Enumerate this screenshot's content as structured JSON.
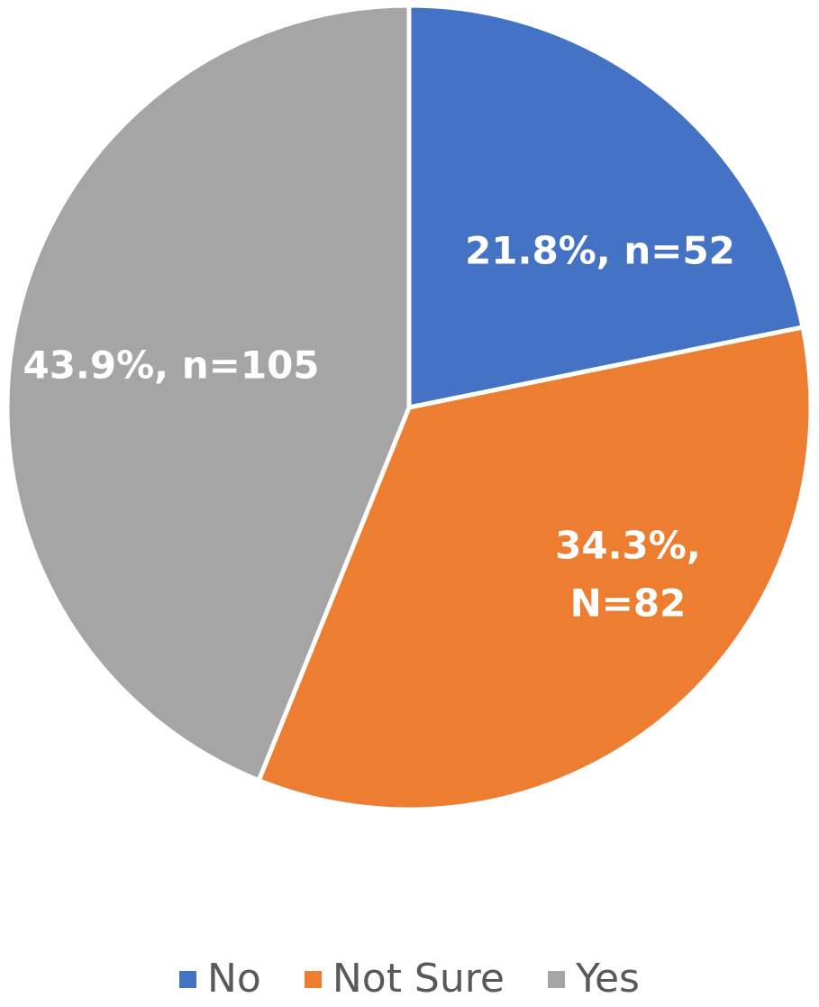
{
  "chart_data": {
    "type": "pie",
    "title": "",
    "start_angle_deg": 0,
    "direction": "clockwise",
    "slices": [
      {
        "name": "No",
        "percent": 21.8,
        "n": 52,
        "label_lines": [
          "21.8%, n=52"
        ],
        "color": "#4472C4"
      },
      {
        "name": "Not Sure",
        "percent": 34.3,
        "n": 82,
        "label_lines": [
          "34.3%,",
          "N=82"
        ],
        "color": "#ED7D31"
      },
      {
        "name": "Yes",
        "percent": 43.9,
        "n": 105,
        "label_lines": [
          "43.9%, n=105"
        ],
        "color": "#A5A5A5"
      }
    ],
    "legend": {
      "position": "bottom",
      "items": [
        {
          "label": "No",
          "color": "#4472C4"
        },
        {
          "label": "Not Sure",
          "color": "#ED7D31"
        },
        {
          "label": "Yes",
          "color": "#A5A5A5"
        }
      ]
    }
  }
}
